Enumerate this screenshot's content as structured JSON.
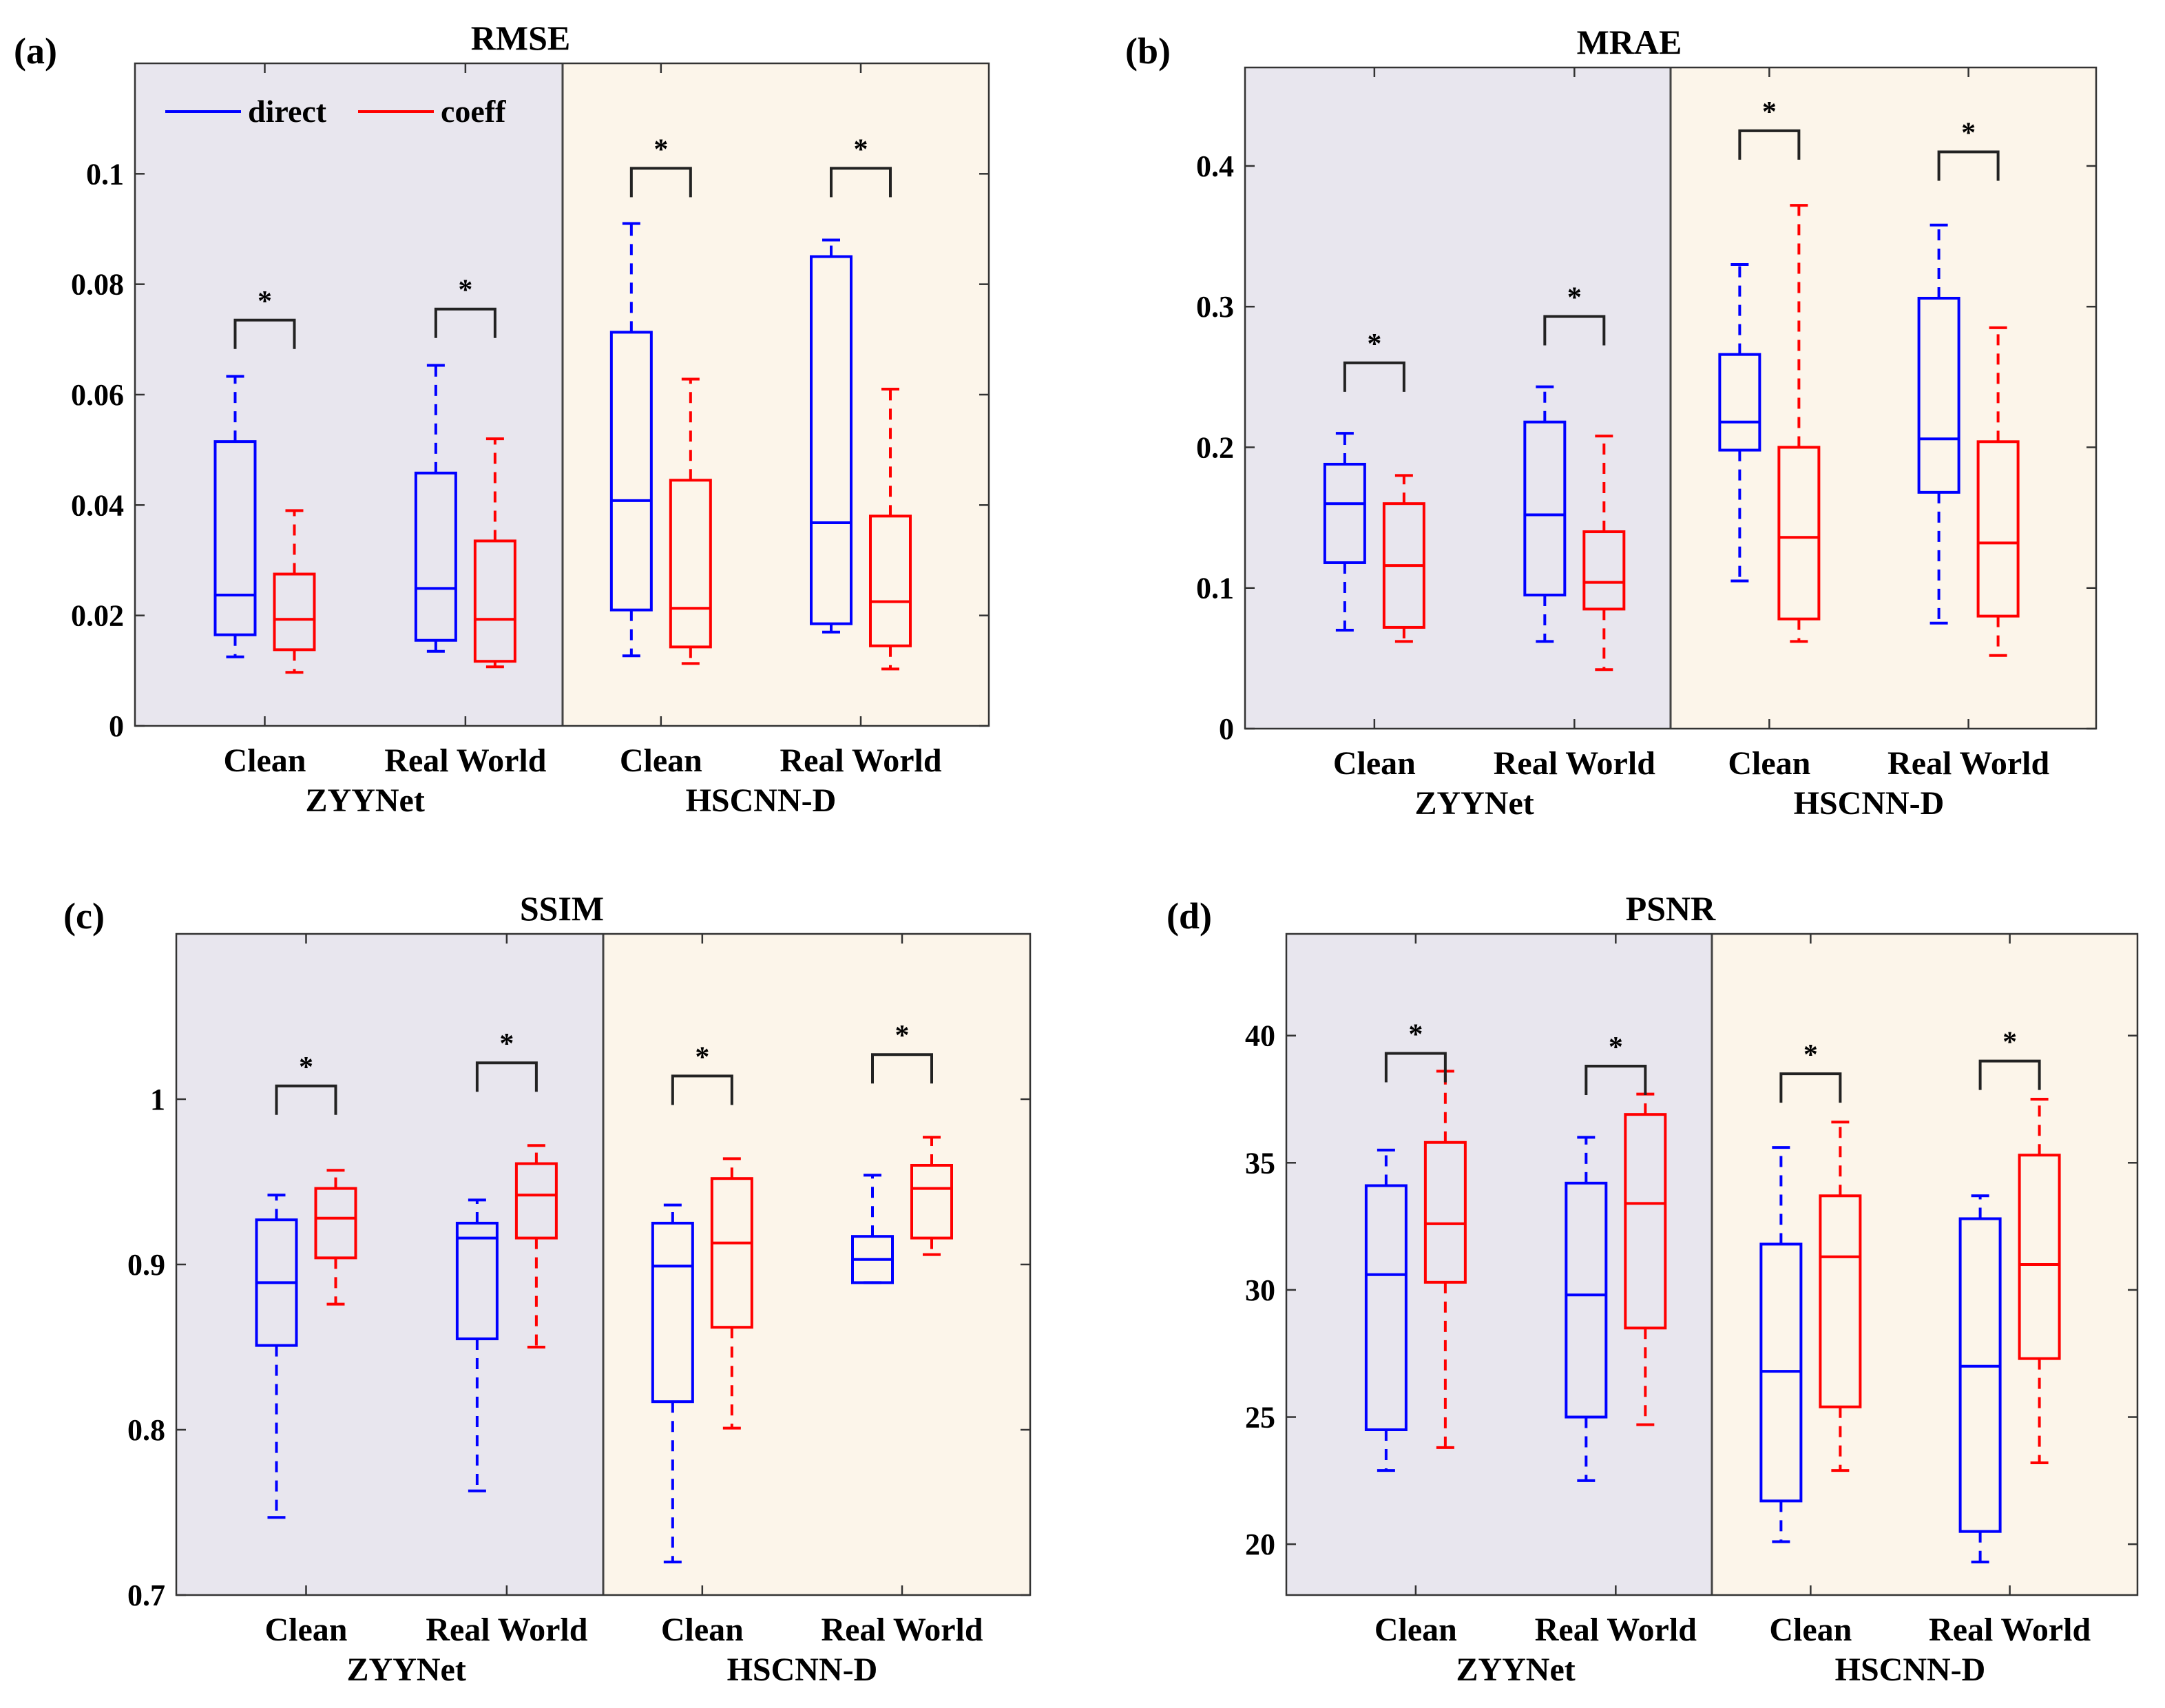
{
  "colors": {
    "direct": "#0000ff",
    "coeff": "#ff0000",
    "zyynet_bg": "#e8e6ee",
    "hscnn_bg": "#fcf5ea",
    "axis": "#333333"
  },
  "legend": {
    "direct": "direct",
    "coeff": "coeff"
  },
  "chart_data": [
    {
      "panel": "(a)",
      "type": "box",
      "title": "RMSE",
      "ylim": [
        0,
        0.12
      ],
      "yticks": [
        0,
        0.02,
        0.04,
        0.06,
        0.08,
        0.1
      ],
      "ytick_labels": [
        "0",
        "0.02",
        "0.04",
        "0.06",
        "0.08",
        "0.1"
      ],
      "categories": [
        "Clean",
        "Real World",
        "Clean",
        "Real World"
      ],
      "groups": [
        "ZYYNet",
        "HSCNN-D"
      ],
      "sig_marker": "*",
      "sig_heights": [
        0.0735,
        0.0755,
        0.101,
        0.101
      ],
      "series": [
        {
          "name": "direct",
          "boxes": [
            {
              "min": 0.0125,
              "q1": 0.0165,
              "median": 0.0237,
              "q3": 0.0515,
              "max": 0.0633
            },
            {
              "min": 0.0135,
              "q1": 0.0155,
              "median": 0.0249,
              "q3": 0.0458,
              "max": 0.0653
            },
            {
              "min": 0.0127,
              "q1": 0.021,
              "median": 0.0408,
              "q3": 0.0713,
              "max": 0.091
            },
            {
              "min": 0.017,
              "q1": 0.0185,
              "median": 0.0368,
              "q3": 0.085,
              "max": 0.088
            }
          ]
        },
        {
          "name": "coeff",
          "boxes": [
            {
              "min": 0.0097,
              "q1": 0.0138,
              "median": 0.0193,
              "q3": 0.0275,
              "max": 0.039
            },
            {
              "min": 0.0107,
              "q1": 0.0117,
              "median": 0.0193,
              "q3": 0.0335,
              "max": 0.052
            },
            {
              "min": 0.0113,
              "q1": 0.0143,
              "median": 0.0213,
              "q3": 0.0445,
              "max": 0.0628
            },
            {
              "min": 0.0103,
              "q1": 0.0145,
              "median": 0.0225,
              "q3": 0.038,
              "max": 0.061
            }
          ]
        }
      ]
    },
    {
      "panel": "(b)",
      "type": "box",
      "title": "MRAE",
      "ylim": [
        0,
        0.47
      ],
      "yticks": [
        0,
        0.1,
        0.2,
        0.3,
        0.4
      ],
      "ytick_labels": [
        "0",
        "0.1",
        "0.2",
        "0.3",
        "0.4"
      ],
      "categories": [
        "Clean",
        "Real World",
        "Clean",
        "Real World"
      ],
      "groups": [
        "ZYYNet",
        "HSCNN-D"
      ],
      "sig_marker": "*",
      "sig_heights": [
        0.26,
        0.293,
        0.425,
        0.41
      ],
      "series": [
        {
          "name": "direct",
          "boxes": [
            {
              "min": 0.07,
              "q1": 0.118,
              "median": 0.16,
              "q3": 0.188,
              "max": 0.21
            },
            {
              "min": 0.062,
              "q1": 0.095,
              "median": 0.152,
              "q3": 0.218,
              "max": 0.243
            },
            {
              "min": 0.105,
              "q1": 0.198,
              "median": 0.218,
              "q3": 0.266,
              "max": 0.33
            },
            {
              "min": 0.075,
              "q1": 0.168,
              "median": 0.206,
              "q3": 0.306,
              "max": 0.358
            }
          ]
        },
        {
          "name": "coeff",
          "boxes": [
            {
              "min": 0.062,
              "q1": 0.072,
              "median": 0.116,
              "q3": 0.16,
              "max": 0.18
            },
            {
              "min": 0.042,
              "q1": 0.085,
              "median": 0.104,
              "q3": 0.14,
              "max": 0.208
            },
            {
              "min": 0.062,
              "q1": 0.078,
              "median": 0.136,
              "q3": 0.2,
              "max": 0.372
            },
            {
              "min": 0.052,
              "q1": 0.08,
              "median": 0.132,
              "q3": 0.204,
              "max": 0.285
            }
          ]
        }
      ]
    },
    {
      "panel": "(c)",
      "type": "box",
      "title": "SSIM",
      "ylim": [
        0.7,
        1.1
      ],
      "yticks": [
        0.7,
        0.8,
        0.9,
        1.0
      ],
      "ytick_labels": [
        "0.7",
        "0.8",
        "0.9",
        "1"
      ],
      "categories": [
        "Clean",
        "Real World",
        "Clean",
        "Real World"
      ],
      "groups": [
        "ZYYNet",
        "HSCNN-D"
      ],
      "sig_marker": "*",
      "sig_heights": [
        1.008,
        1.022,
        1.014,
        1.027
      ],
      "series": [
        {
          "name": "direct",
          "boxes": [
            {
              "min": 0.747,
              "q1": 0.851,
              "median": 0.889,
              "q3": 0.927,
              "max": 0.942
            },
            {
              "min": 0.763,
              "q1": 0.855,
              "median": 0.916,
              "q3": 0.925,
              "max": 0.939
            },
            {
              "min": 0.72,
              "q1": 0.817,
              "median": 0.899,
              "q3": 0.925,
              "max": 0.936
            },
            {
              "min": 0.889,
              "q1": 0.889,
              "median": 0.903,
              "q3": 0.917,
              "max": 0.954
            }
          ]
        },
        {
          "name": "coeff",
          "boxes": [
            {
              "min": 0.876,
              "q1": 0.904,
              "median": 0.928,
              "q3": 0.946,
              "max": 0.957
            },
            {
              "min": 0.85,
              "q1": 0.916,
              "median": 0.942,
              "q3": 0.961,
              "max": 0.972
            },
            {
              "min": 0.801,
              "q1": 0.862,
              "median": 0.913,
              "q3": 0.952,
              "max": 0.964
            },
            {
              "min": 0.906,
              "q1": 0.916,
              "median": 0.946,
              "q3": 0.96,
              "max": 0.977
            }
          ]
        }
      ]
    },
    {
      "panel": "(d)",
      "type": "box",
      "title": "PSNR",
      "ylim": [
        18,
        44
      ],
      "yticks": [
        20,
        25,
        30,
        35,
        40
      ],
      "ytick_labels": [
        "20",
        "25",
        "30",
        "35",
        "40"
      ],
      "categories": [
        "Clean",
        "Real World",
        "Clean",
        "Real World"
      ],
      "groups": [
        "ZYYNet",
        "HSCNN-D"
      ],
      "sig_marker": "*",
      "sig_heights": [
        39.3,
        38.8,
        38.5,
        39.0
      ],
      "series": [
        {
          "name": "direct",
          "boxes": [
            {
              "min": 22.9,
              "q1": 24.5,
              "median": 30.6,
              "q3": 34.1,
              "max": 35.5
            },
            {
              "min": 22.5,
              "q1": 25.0,
              "median": 29.8,
              "q3": 34.2,
              "max": 36.0
            },
            {
              "min": 20.1,
              "q1": 21.7,
              "median": 26.8,
              "q3": 31.8,
              "max": 35.6
            },
            {
              "min": 19.3,
              "q1": 20.5,
              "median": 27.0,
              "q3": 32.8,
              "max": 33.7
            }
          ]
        },
        {
          "name": "coeff",
          "boxes": [
            {
              "min": 23.8,
              "q1": 30.3,
              "median": 32.6,
              "q3": 35.8,
              "max": 38.6
            },
            {
              "min": 24.7,
              "q1": 28.5,
              "median": 33.4,
              "q3": 36.9,
              "max": 37.7
            },
            {
              "min": 22.9,
              "q1": 25.4,
              "median": 31.3,
              "q3": 33.7,
              "max": 36.6
            },
            {
              "min": 23.2,
              "q1": 27.3,
              "median": 31.0,
              "q3": 35.3,
              "max": 37.5
            }
          ]
        }
      ]
    }
  ]
}
